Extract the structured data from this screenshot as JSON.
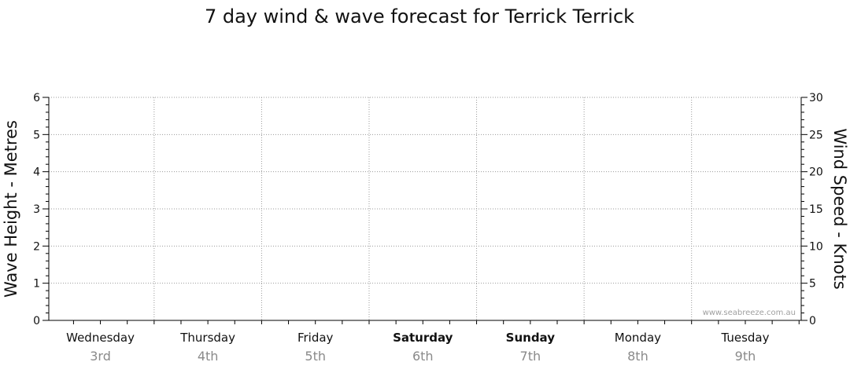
{
  "chart_data": {
    "type": "line",
    "title": "7 day wind & wave forecast for Terrick Terrick",
    "y_left": {
      "label": "Wave Height - Metres",
      "range": [
        0,
        6
      ],
      "ticks": [
        0,
        1,
        2,
        3,
        4,
        5,
        6
      ]
    },
    "y_right": {
      "label": "Wind Speed - Knots",
      "range": [
        0,
        30
      ],
      "ticks": [
        0,
        5,
        10,
        15,
        20,
        25,
        30
      ]
    },
    "days": [
      {
        "name": "Wednesday",
        "date": "3rd",
        "bold": false
      },
      {
        "name": "Thursday",
        "date": "4th",
        "bold": false
      },
      {
        "name": "Friday",
        "date": "5th",
        "bold": false
      },
      {
        "name": "Saturday",
        "date": "6th",
        "bold": true
      },
      {
        "name": "Sunday",
        "date": "7th",
        "bold": true
      },
      {
        "name": "Monday",
        "date": "8th",
        "bold": false
      },
      {
        "name": "Tuesday",
        "date": "9th",
        "bold": false
      }
    ],
    "series": [],
    "grid": true,
    "watermark": "www.seabreeze.com.au",
    "colors": {
      "grid": "#9a9a9a",
      "axis": "#000000",
      "date_text": "#8a8a8a"
    }
  }
}
